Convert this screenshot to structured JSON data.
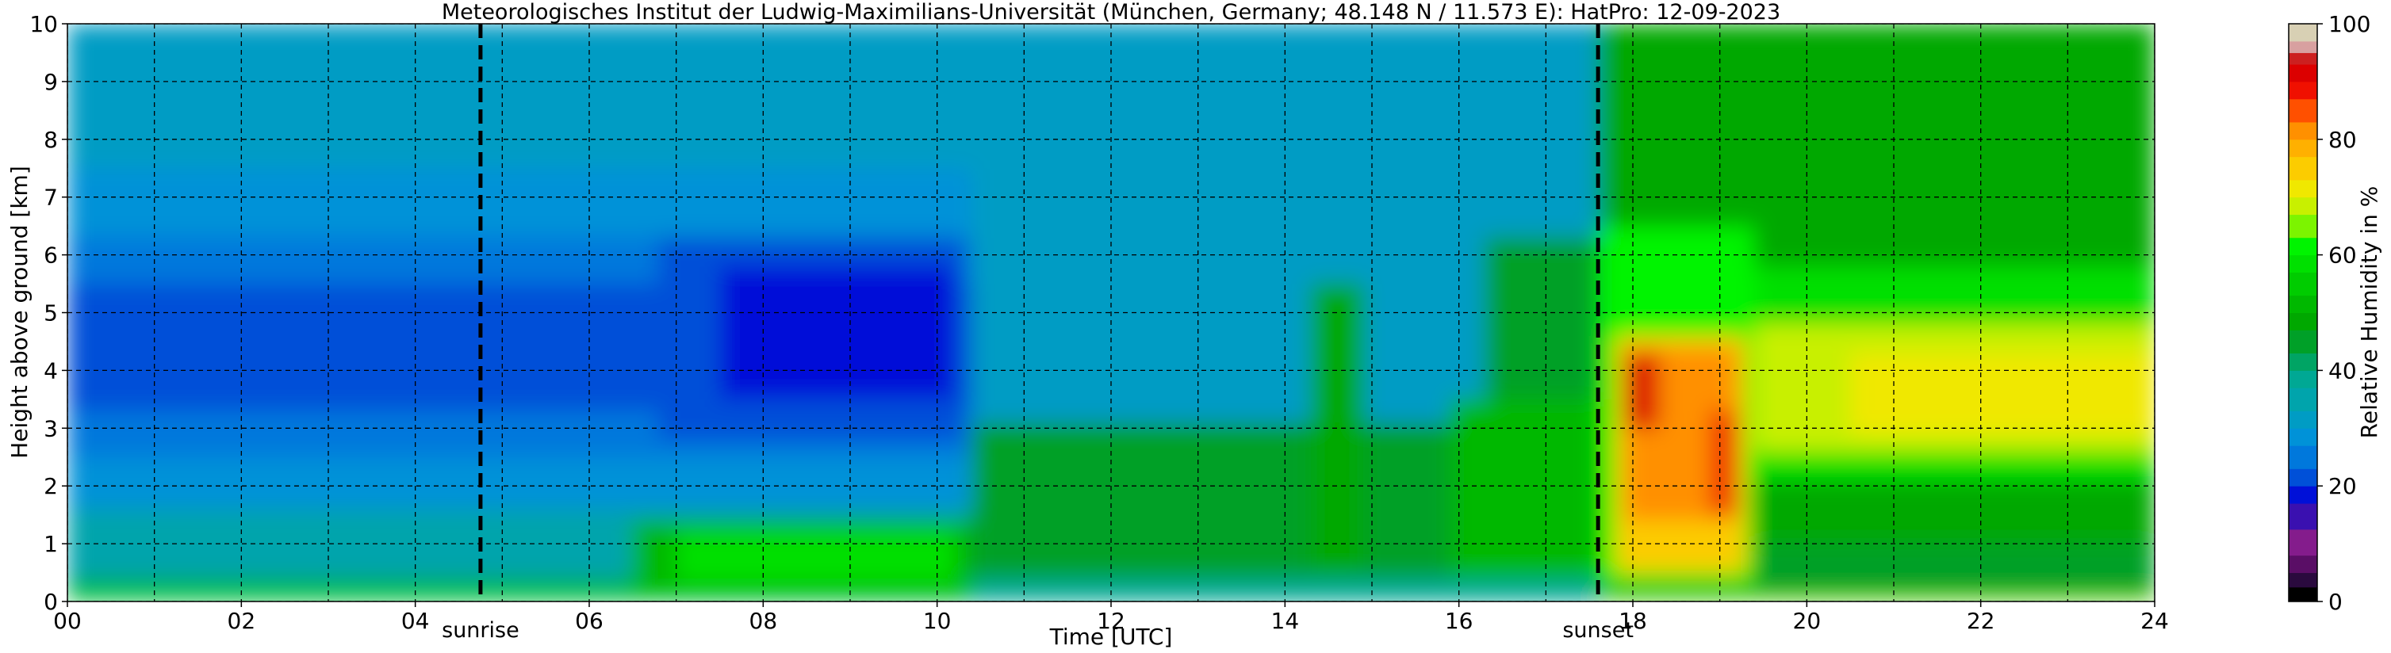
{
  "chart_data": {
    "type": "heatmap",
    "title": "Meteorologisches Institut der Ludwig-Maximilians-Universität (München, Germany; 48.148 N / 11.573 E):    HatPro: 12-09-2023",
    "xlabel": "Time [UTC]",
    "ylabel": "Height above ground [km]",
    "xlim": [
      0,
      24
    ],
    "ylim": [
      0,
      10
    ],
    "x_ticks": [
      0,
      2,
      4,
      6,
      8,
      10,
      12,
      14,
      16,
      18,
      20,
      22,
      24
    ],
    "x_tick_labels": [
      "00",
      "02",
      "04",
      "06",
      "08",
      "10",
      "12",
      "14",
      "16",
      "18",
      "20",
      "22",
      "24"
    ],
    "y_ticks": [
      0,
      1,
      2,
      3,
      4,
      5,
      6,
      7,
      8,
      9,
      10
    ],
    "y_tick_labels": [
      "0",
      "1",
      "2",
      "3",
      "4",
      "5",
      "6",
      "7",
      "8",
      "9",
      "10"
    ],
    "grid": true,
    "annotations": [
      {
        "label": "sunrise",
        "x": 4.75
      },
      {
        "label": "sunset",
        "x": 17.6
      }
    ],
    "colorbar": {
      "label": "Relative Humidity in %",
      "range": [
        0,
        100
      ],
      "ticks": [
        0,
        20,
        40,
        60,
        80,
        100
      ],
      "tick_labels": [
        "0",
        "20",
        "40",
        "60",
        "80",
        "100"
      ],
      "levels": [
        {
          "from": 0,
          "to": 2.5,
          "color": "#000000"
        },
        {
          "from": 2.5,
          "to": 5,
          "color": "#2a0a3e"
        },
        {
          "from": 5,
          "to": 8,
          "color": "#5a0e66"
        },
        {
          "from": 8,
          "to": 12.5,
          "color": "#841c8c"
        },
        {
          "from": 12.5,
          "to": 17,
          "color": "#3a10b0"
        },
        {
          "from": 17,
          "to": 20,
          "color": "#0010d8"
        },
        {
          "from": 20,
          "to": 23,
          "color": "#0050d8"
        },
        {
          "from": 23,
          "to": 27,
          "color": "#0078dc"
        },
        {
          "from": 27,
          "to": 30,
          "color": "#0092d8"
        },
        {
          "from": 30,
          "to": 33,
          "color": "#009cc4"
        },
        {
          "from": 33,
          "to": 37,
          "color": "#00a4ac"
        },
        {
          "from": 37,
          "to": 40,
          "color": "#00a894"
        },
        {
          "from": 40,
          "to": 43,
          "color": "#00a464"
        },
        {
          "from": 43,
          "to": 47,
          "color": "#00a028"
        },
        {
          "from": 47,
          "to": 50,
          "color": "#00a800"
        },
        {
          "from": 50,
          "to": 53,
          "color": "#00b800"
        },
        {
          "from": 53,
          "to": 57,
          "color": "#00cc00"
        },
        {
          "from": 57,
          "to": 60,
          "color": "#00e000"
        },
        {
          "from": 60,
          "to": 63,
          "color": "#00f400"
        },
        {
          "from": 63,
          "to": 67,
          "color": "#7cf400"
        },
        {
          "from": 67,
          "to": 70,
          "color": "#c8f000"
        },
        {
          "from": 70,
          "to": 73,
          "color": "#f0e800"
        },
        {
          "from": 73,
          "to": 77,
          "color": "#fccc00"
        },
        {
          "from": 77,
          "to": 80,
          "color": "#ffb000"
        },
        {
          "from": 80,
          "to": 83,
          "color": "#ff9000"
        },
        {
          "from": 83,
          "to": 87,
          "color": "#ff5000"
        },
        {
          "from": 87,
          "to": 90,
          "color": "#f01000"
        },
        {
          "from": 90,
          "to": 93,
          "color": "#dc0000"
        },
        {
          "from": 93,
          "to": 95,
          "color": "#cc2020"
        },
        {
          "from": 95,
          "to": 97,
          "color": "#d8a0a0"
        },
        {
          "from": 97,
          "to": 100,
          "color": "#d8d0b4"
        }
      ]
    },
    "field_regions": [
      {
        "t0": 0,
        "t1": 24,
        "h0": 0,
        "h1": 10,
        "rh": 38
      },
      {
        "t0": 0,
        "t1": 17.6,
        "h0": 0.3,
        "h1": 10,
        "rh": 29
      },
      {
        "t0": 0,
        "t1": 17.6,
        "h0": 7.5,
        "h1": 10,
        "rh": 32
      },
      {
        "t0": 0,
        "t1": 10.4,
        "h0": 2.5,
        "h1": 6.3,
        "rh": 24
      },
      {
        "t0": 0,
        "t1": 10.4,
        "h0": 3.3,
        "h1": 5.5,
        "rh": 22
      },
      {
        "t0": 6.8,
        "t1": 10.3,
        "h0": 2.8,
        "h1": 6.3,
        "rh": 20
      },
      {
        "t0": 7.5,
        "t1": 10.2,
        "h0": 3.5,
        "h1": 5.8,
        "rh": 18
      },
      {
        "t0": 10.4,
        "t1": 17.6,
        "h0": 3.2,
        "h1": 7.8,
        "rh": 31
      },
      {
        "t0": 0,
        "t1": 10.4,
        "h0": 0.4,
        "h1": 1.6,
        "rh": 35
      },
      {
        "t0": 0,
        "t1": 24,
        "h0": 0,
        "h1": 0.4,
        "rh": 40
      },
      {
        "t0": 0,
        "t1": 10.5,
        "h0": 0.05,
        "h1": 0.25,
        "rh": 56
      },
      {
        "t0": 6.5,
        "t1": 10.4,
        "h0": 0.2,
        "h1": 1.4,
        "rh": 50
      },
      {
        "t0": 7.0,
        "t1": 10.2,
        "h0": 0.35,
        "h1": 1.2,
        "rh": 58
      },
      {
        "t0": 10.4,
        "t1": 17.6,
        "h0": 0.4,
        "h1": 3.1,
        "rh": 46
      },
      {
        "t0": 10.4,
        "t1": 17.6,
        "h0": 0,
        "h1": 0.4,
        "rh": 37
      },
      {
        "t0": 14.3,
        "t1": 14.9,
        "h0": 0.5,
        "h1": 5.5,
        "rh": 47
      },
      {
        "t0": 16.3,
        "t1": 17.6,
        "h0": 1.5,
        "h1": 6.3,
        "rh": 44
      },
      {
        "t0": 15.9,
        "t1": 17.6,
        "h0": 0.4,
        "h1": 3.5,
        "rh": 52
      },
      {
        "t0": 17.6,
        "t1": 24,
        "h0": 0,
        "h1": 10,
        "rh": 47
      },
      {
        "t0": 17.6,
        "t1": 24,
        "h0": 0,
        "h1": 1.0,
        "rh": 44
      },
      {
        "t0": 17.6,
        "t1": 24,
        "h0": 2.1,
        "h1": 5.8,
        "rh": 57
      },
      {
        "t0": 18.5,
        "t1": 24,
        "h0": 2.6,
        "h1": 4.8,
        "rh": 68
      },
      {
        "t0": 20.5,
        "t1": 24,
        "h0": 2.9,
        "h1": 4.3,
        "rh": 72
      },
      {
        "t0": 17.6,
        "t1": 19.4,
        "h0": 0.3,
        "h1": 6.5,
        "rh": 60
      },
      {
        "t0": 17.8,
        "t1": 19.3,
        "h0": 0.5,
        "h1": 4.6,
        "rh": 73
      },
      {
        "t0": 17.9,
        "t1": 19.2,
        "h0": 1.4,
        "h1": 4.4,
        "rh": 80
      },
      {
        "t0": 17.9,
        "t1": 18.3,
        "h0": 3.0,
        "h1": 4.3,
        "rh": 90
      },
      {
        "t0": 18.9,
        "t1": 19.2,
        "h0": 1.5,
        "h1": 3.3,
        "rh": 88
      },
      {
        "t0": 17.6,
        "t1": 24,
        "h0": 0,
        "h1": 0.1,
        "rh": 63
      }
    ]
  }
}
